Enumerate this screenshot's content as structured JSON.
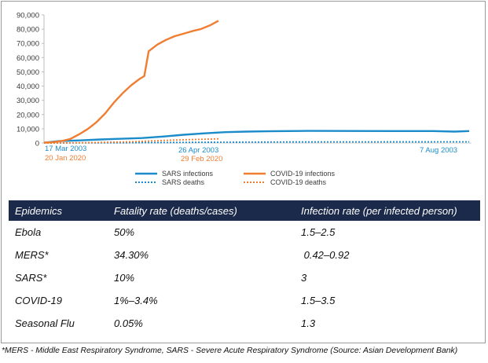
{
  "chart_data": {
    "type": "line",
    "ylim": [
      0,
      90000
    ],
    "y_ticks": [
      0,
      10000,
      20000,
      30000,
      40000,
      50000,
      60000,
      70000,
      80000,
      90000
    ],
    "y_tick_labels": [
      "0",
      "10,000",
      "20,000",
      "30,000",
      "40,000",
      "50,000",
      "60,000",
      "70,000",
      "80,000",
      "90,000"
    ],
    "x_labels": {
      "sars_start": "17 Mar 2003",
      "covid_start": "20 Jan 2020",
      "sars_mid": "26 Apr 2003",
      "covid_end": "29 Feb 2020",
      "sars_end": "7 Aug 2003"
    },
    "series": [
      {
        "name": "SARS infections",
        "color": "#1b8cc9",
        "style": "solid",
        "x_dates": [
          "2003-03-17",
          "2003-03-22",
          "2003-03-29",
          "2003-04-05",
          "2003-04-12",
          "2003-04-19",
          "2003-04-26",
          "2003-05-03",
          "2003-05-10",
          "2003-05-17",
          "2003-05-24",
          "2003-05-31",
          "2003-06-07",
          "2003-06-14",
          "2003-06-28",
          "2003-07-12",
          "2003-07-26",
          "2003-08-02",
          "2003-08-07"
        ],
        "values": [
          167,
          1300,
          1800,
          2500,
          3000,
          3500,
          4500,
          5800,
          6800,
          7600,
          8000,
          8200,
          8400,
          8500,
          8450,
          8420,
          8400,
          8000,
          8420
        ]
      },
      {
        "name": "SARS deaths",
        "color": "#1b8cc9",
        "style": "dotted",
        "x_dates": [
          "2003-03-17",
          "2003-04-12",
          "2003-05-10",
          "2003-06-07",
          "2003-07-05",
          "2003-08-07"
        ],
        "values": [
          4,
          180,
          480,
          720,
          790,
          812
        ]
      },
      {
        "name": "COVID-19 infections",
        "color": "#ef7d32",
        "style": "solid",
        "x_dates": [
          "2020-01-20",
          "2020-01-22",
          "2020-01-24",
          "2020-01-26",
          "2020-01-28",
          "2020-01-30",
          "2020-02-01",
          "2020-02-03",
          "2020-02-05",
          "2020-02-07",
          "2020-02-09",
          "2020-02-11",
          "2020-02-12",
          "2020-02-13",
          "2020-02-15",
          "2020-02-17",
          "2020-02-19",
          "2020-02-21",
          "2020-02-23",
          "2020-02-25",
          "2020-02-27",
          "2020-02-29"
        ],
        "values": [
          300,
          600,
          1300,
          2800,
          6000,
          9800,
          14500,
          20700,
          28300,
          34900,
          40600,
          45200,
          47000,
          64500,
          69200,
          72500,
          75100,
          76800,
          78600,
          80100,
          82600,
          85900
        ]
      },
      {
        "name": "COVID-19 deaths",
        "color": "#ef7d32",
        "style": "dotted",
        "x_dates": [
          "2020-01-20",
          "2020-01-30",
          "2020-02-09",
          "2020-02-19",
          "2020-02-29"
        ],
        "values": [
          6,
          213,
          910,
          2120,
          2940
        ]
      }
    ]
  },
  "table": {
    "headers": [
      "Epidemics",
      "Fatality rate (deaths/cases)",
      "Infection rate (per infected person)"
    ],
    "rows": [
      [
        "Ebola",
        "50%",
        "1.5–2.5"
      ],
      [
        "MERS*",
        "34.30%",
        " 0.42–0.92"
      ],
      [
        "SARS*",
        "10%",
        "3"
      ],
      [
        "COVID-19",
        "1%–3.4%",
        "1.5–3.5"
      ],
      [
        "Seasonal Flu",
        "0.05%",
        "1.3"
      ]
    ],
    "header_bg": "#1b2a4a"
  },
  "footnote": "*MERS - Middle East Respiratory Syndrome, SARS - Severe Acute Respiratory Syndrome (Source: Asian Development Bank)"
}
